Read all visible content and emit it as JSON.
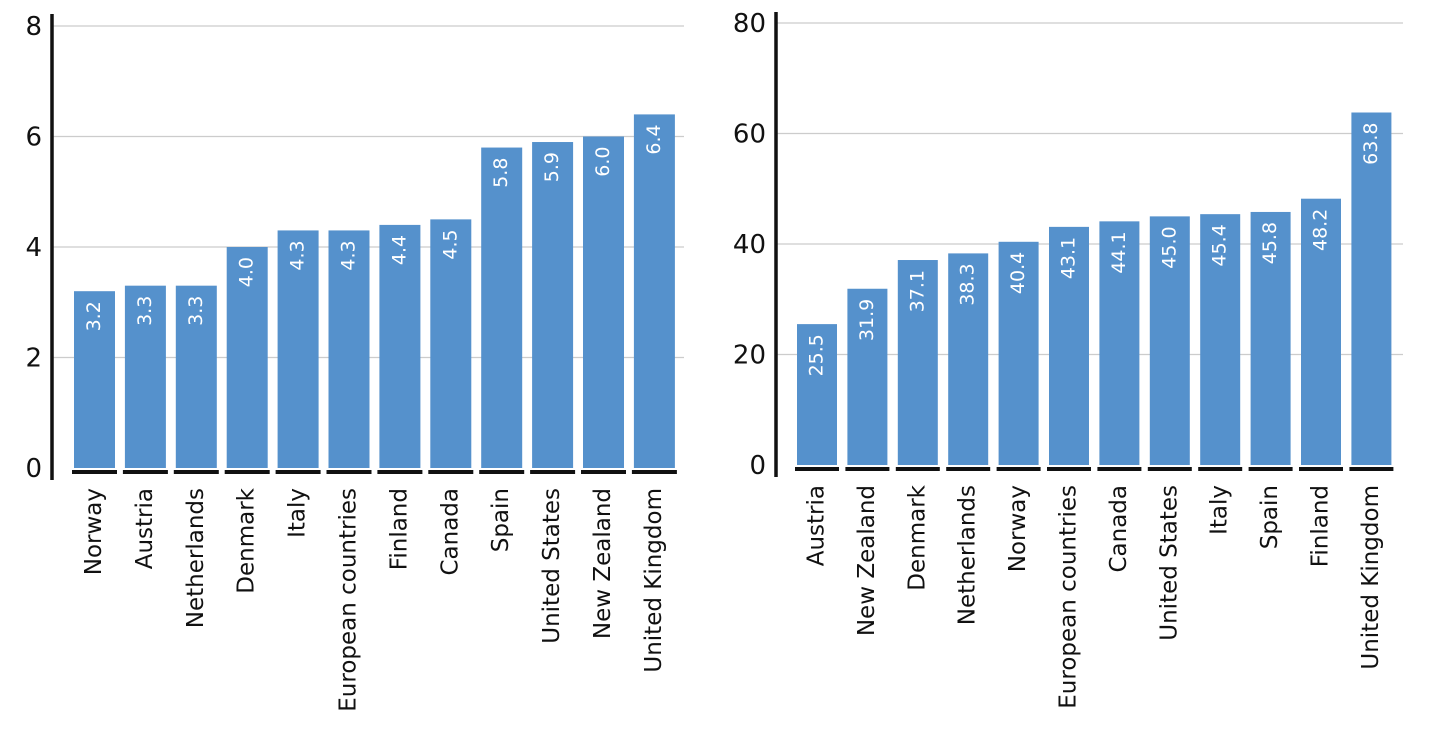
{
  "colors": {
    "bar": "#5591cc",
    "grid": "#cccccc",
    "axis": "#111111",
    "label": "#ffffff"
  },
  "chart_data": [
    {
      "type": "bar",
      "title": "",
      "xlabel": "",
      "ylabel": "",
      "ylim": [
        0,
        8
      ],
      "yticks": [
        "0",
        "2",
        "4",
        "6",
        "8"
      ],
      "grid": true,
      "categories": [
        "Norway",
        "Austria",
        "Netherlands",
        "Denmark",
        "Italy",
        "European countries",
        "Finland",
        "Canada",
        "Spain",
        "United States",
        "New Zealand",
        "United Kingdom"
      ],
      "values": [
        3.2,
        3.3,
        3.3,
        4.0,
        4.3,
        4.3,
        4.4,
        4.5,
        5.8,
        5.9,
        6.0,
        6.4
      ],
      "value_labels": [
        "3.2",
        "3.3",
        "3.3",
        "4.0",
        "4.3",
        "4.3",
        "4.4",
        "4.5",
        "5.8",
        "5.9",
        "6.0",
        "6.4"
      ]
    },
    {
      "type": "bar",
      "title": "",
      "xlabel": "",
      "ylabel": "",
      "ylim": [
        0,
        80
      ],
      "yticks": [
        "0",
        "20",
        "40",
        "60",
        "80"
      ],
      "grid": true,
      "categories": [
        "Austria",
        "New Zealand",
        "Denmark",
        "Netherlands",
        "Norway",
        "European countries",
        "Canada",
        "United States",
        "Italy",
        "Spain",
        "Finland",
        "United Kingdom"
      ],
      "values": [
        25.5,
        31.9,
        37.1,
        38.3,
        40.4,
        43.1,
        44.1,
        45.0,
        45.4,
        45.8,
        48.2,
        63.8
      ],
      "value_labels": [
        "25.5",
        "31.9",
        "37.1",
        "38.3",
        "40.4",
        "43.1",
        "44.1",
        "45.0",
        "45.4",
        "45.8",
        "48.2",
        "63.8"
      ]
    }
  ]
}
